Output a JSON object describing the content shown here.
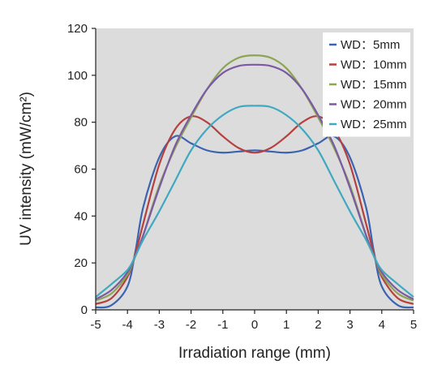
{
  "chart_data": {
    "type": "line",
    "title": "",
    "xlabel": "Irradiation range (mm)",
    "ylabel": "UV intensity (mW/cm²)",
    "xlim": [
      -5,
      5
    ],
    "ylim": [
      0,
      120
    ],
    "x_ticks": [
      "-5",
      "-4",
      "-3",
      "-2",
      "-1",
      "0",
      "1",
      "2",
      "3",
      "4",
      "5"
    ],
    "y_ticks": [
      "0",
      "20",
      "40",
      "60",
      "80",
      "100",
      "120"
    ],
    "grid": false,
    "plot_background": "#dcdcdc",
    "legend_position": "top-right",
    "x": [
      -5,
      -4.5,
      -4,
      -3.75,
      -3.5,
      -3,
      -2.5,
      -2,
      -1.5,
      -1,
      -0.5,
      0,
      0.5,
      1,
      1.5,
      2,
      2.5,
      3,
      3.5,
      3.75,
      4,
      4.5,
      5
    ],
    "series": [
      {
        "name": "WD：5mm",
        "color": "#3a63b0",
        "values": [
          1,
          2,
          10,
          25,
          44,
          65,
          74,
          71,
          68,
          67,
          67.5,
          68,
          67.5,
          67,
          68,
          71,
          74,
          65,
          44,
          25,
          10,
          2,
          1
        ]
      },
      {
        "name": "WD：10mm",
        "color": "#b5413f",
        "values": [
          2.5,
          5,
          14,
          24,
          37,
          62,
          77,
          82.5,
          80,
          74,
          69,
          67,
          69,
          74,
          80,
          82.5,
          77,
          62,
          37,
          24,
          14,
          5,
          2.5
        ]
      },
      {
        "name": "WD：15mm",
        "color": "#8ca552",
        "values": [
          4,
          7,
          15,
          23,
          32,
          53,
          69,
          82,
          94,
          103,
          107.5,
          108.5,
          107.5,
          103,
          94,
          82,
          69,
          53,
          32,
          23,
          15,
          7,
          4
        ]
      },
      {
        "name": "WD：20mm",
        "color": "#7b5aa3",
        "values": [
          4.5,
          8.5,
          16,
          23,
          32,
          52,
          70,
          83,
          94,
          101,
          104,
          104.5,
          104,
          101,
          94,
          83,
          70,
          52,
          32,
          23,
          16,
          8.5,
          4.5
        ]
      },
      {
        "name": "WD：25mm",
        "color": "#3fa9c0",
        "values": [
          5.5,
          11,
          17,
          23,
          30,
          42,
          55,
          68,
          77,
          83,
          86.5,
          87,
          86.5,
          83,
          77,
          68,
          55,
          42,
          30,
          23,
          17,
          11,
          5.5
        ]
      }
    ]
  }
}
